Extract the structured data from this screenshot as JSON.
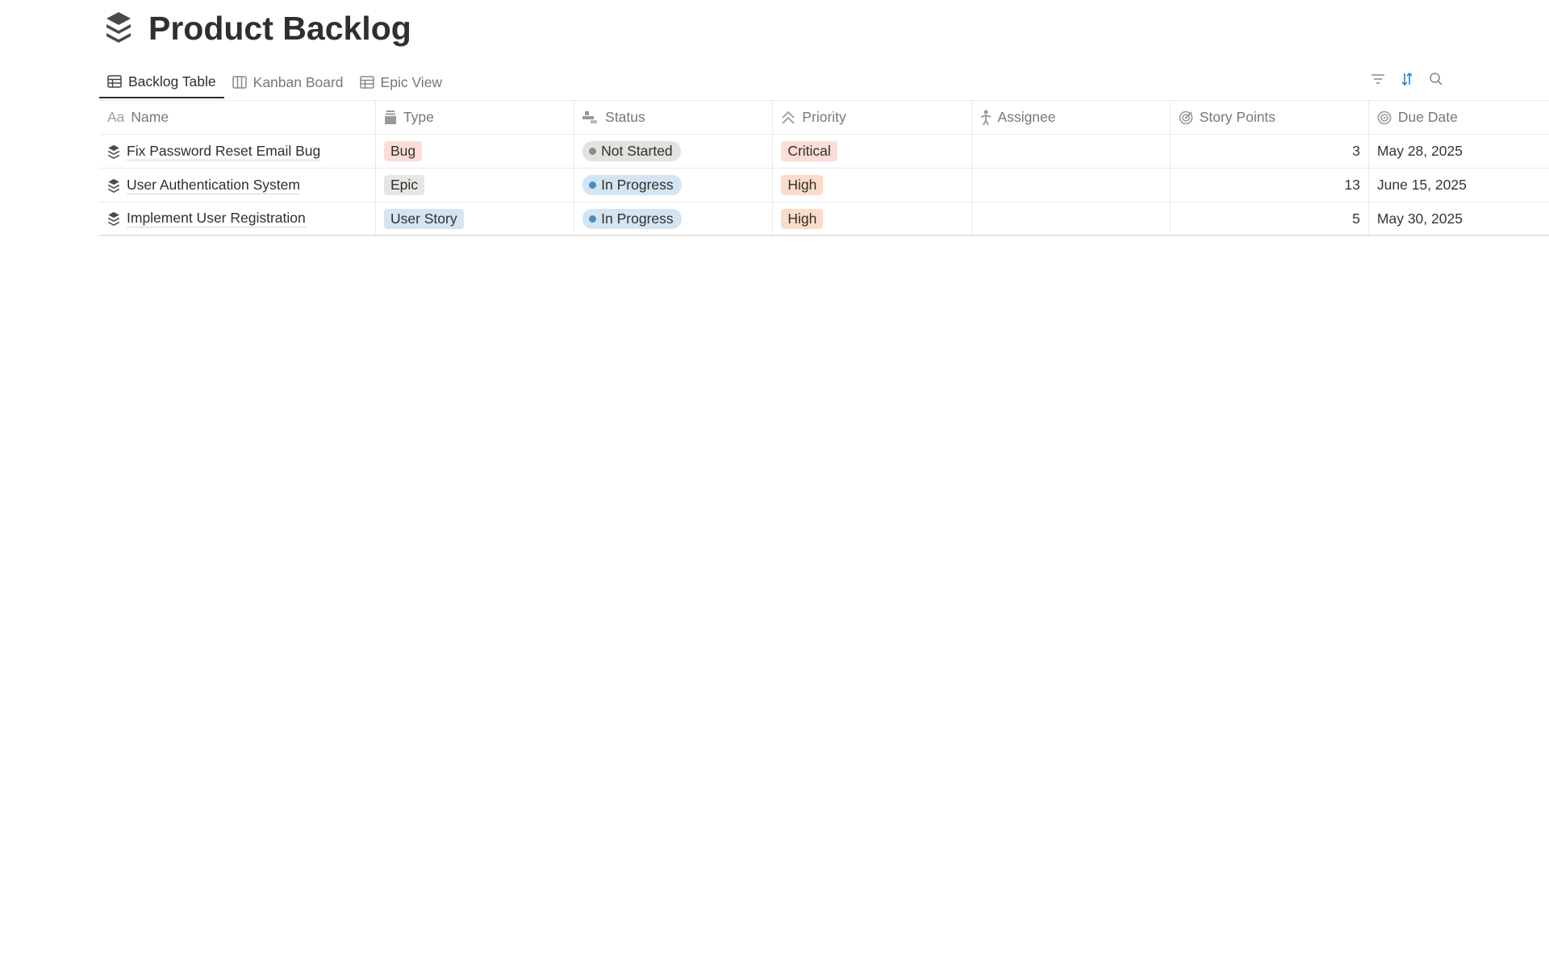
{
  "page": {
    "title": "Product Backlog",
    "icon": "layers-icon"
  },
  "tabs": [
    {
      "label": "Backlog Table",
      "icon": "table-icon",
      "active": true
    },
    {
      "label": "Kanban Board",
      "icon": "board-icon",
      "active": false
    },
    {
      "label": "Epic View",
      "icon": "table-icon",
      "active": false
    }
  ],
  "toolbar": {
    "filter_icon": "filter-icon",
    "sort_icon": "sort-icon",
    "search_icon": "search-icon",
    "sort_color": "#2383e2"
  },
  "columns": [
    {
      "label": "Name",
      "icon": "text-icon",
      "icon_text": "Aa"
    },
    {
      "label": "Type",
      "icon": "select-icon"
    },
    {
      "label": "Status",
      "icon": "status-icon"
    },
    {
      "label": "Priority",
      "icon": "chevrons-up-icon"
    },
    {
      "label": "Assignee",
      "icon": "person-icon"
    },
    {
      "label": "Story Points",
      "icon": "target-icon"
    },
    {
      "label": "Due Date",
      "icon": "target-icon"
    }
  ],
  "rows": [
    {
      "name": "Fix Password Reset Email Bug",
      "type": "Bug",
      "type_color": "#fdddd7",
      "status": "Not Started",
      "status_bg": "#e3e2e0",
      "status_dot": "#8e8b86",
      "priority": "Critical",
      "priority_color": "#fdddd7",
      "assignee": "",
      "points": "3",
      "due": "May 28, 2025"
    },
    {
      "name": "User Authentication System",
      "type": "Epic",
      "type_color": "#e6e6e4",
      "status": "In Progress",
      "status_bg": "#d3e5f2",
      "status_dot": "#4d8ac0",
      "priority": "High",
      "priority_color": "#fbdcc9",
      "assignee": "",
      "points": "13",
      "due": "June 15, 2025"
    },
    {
      "name": "Implement User Registration",
      "type": "User Story",
      "type_color": "#d3e5f2",
      "status": "In Progress",
      "status_bg": "#d3e5f2",
      "status_dot": "#4d8ac0",
      "priority": "High",
      "priority_color": "#fbdcc9",
      "assignee": "",
      "points": "5",
      "due": "May 30, 2025"
    }
  ]
}
